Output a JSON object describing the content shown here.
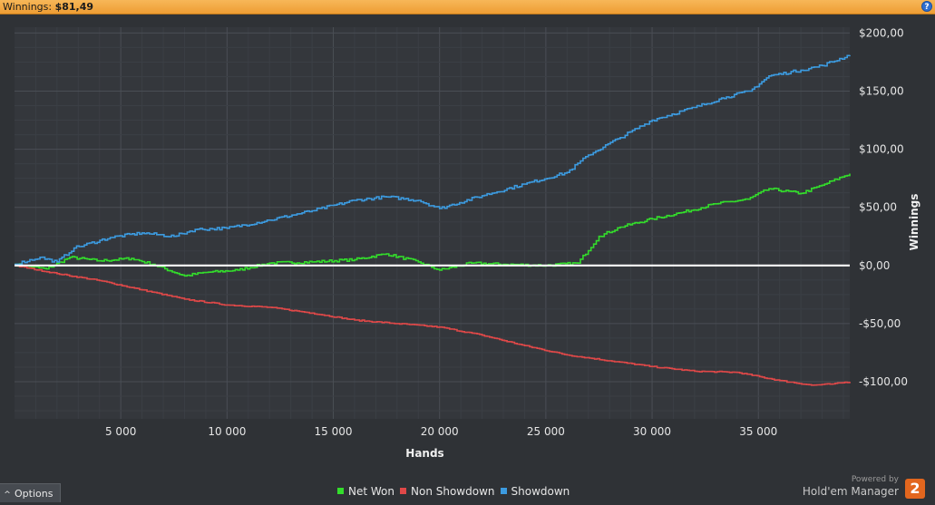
{
  "header": {
    "winnings_label": "Winnings:",
    "winnings_value": "$81,49",
    "help_glyph": "?"
  },
  "footer": {
    "options_label": "Options",
    "options_icon": "caret-up-icon",
    "powered_by": "Powered by",
    "brand": "Hold'em Manager",
    "brand_logo_text": "2"
  },
  "chart_data": {
    "type": "line",
    "xlabel": "Hands",
    "ylabel": "Winnings",
    "xlim": [
      0,
      39300
    ],
    "ylim": [
      -132,
      205
    ],
    "x_ticks": [
      5000,
      10000,
      15000,
      20000,
      25000,
      30000,
      35000
    ],
    "x_tick_labels": [
      "5 000",
      "10 000",
      "15 000",
      "20 000",
      "25 000",
      "30 000",
      "35 000"
    ],
    "y_ticks": [
      200,
      150,
      100,
      50,
      0,
      -50,
      -100
    ],
    "y_tick_labels": [
      "$200,00",
      "$150,00",
      "$100,00",
      "$50,00",
      "$0,00",
      "-$50,00",
      "-$100,00"
    ],
    "grid": true,
    "legend_position": "bottom",
    "colors": {
      "zero_line": "#ffffff",
      "grid_major": "#4a4e55",
      "grid_minor": "#3b3f45",
      "plot_bg": "#34373c"
    },
    "series": [
      {
        "name": "Net Won",
        "color": "#33dd2b",
        "x": [
          0,
          1500,
          2600,
          4000,
          5500,
          6500,
          8000,
          9000,
          10500,
          12000,
          14000,
          16000,
          17500,
          19000,
          20000,
          21500,
          23000,
          25000,
          26500,
          27500,
          28500,
          30000,
          31500,
          33000,
          34500,
          35500,
          37000,
          38000,
          39300
        ],
        "values": [
          1,
          -3,
          7,
          4,
          6,
          1,
          -9,
          -6,
          -4,
          2,
          3,
          5,
          10,
          3,
          -4,
          2,
          1,
          0,
          2,
          25,
          33,
          40,
          46,
          53,
          57,
          66,
          62,
          69,
          79
        ]
      },
      {
        "name": "Non Showdown",
        "color": "#e04848",
        "x": [
          0,
          2000,
          4000,
          6000,
          8000,
          10000,
          12000,
          14000,
          16000,
          18000,
          20000,
          22000,
          24000,
          26000,
          28000,
          30000,
          32000,
          34000,
          36000,
          37500,
          38500,
          39300
        ],
        "values": [
          0,
          -7,
          -13,
          -21,
          -29,
          -34,
          -36,
          -41,
          -47,
          -50,
          -53,
          -60,
          -69,
          -77,
          -82,
          -87,
          -91,
          -92,
          -99,
          -103,
          -102,
          -100
        ]
      },
      {
        "name": "Showdown",
        "color": "#3c9be0",
        "x": [
          0,
          1200,
          2000,
          2800,
          4500,
          6000,
          7500,
          8500,
          10000,
          12000,
          14000,
          16000,
          17500,
          19000,
          20000,
          22000,
          24000,
          26000,
          27000,
          28500,
          30000,
          32000,
          33500,
          34600,
          35500,
          37000,
          38000,
          39300
        ],
        "values": [
          1,
          7,
          3,
          15,
          24,
          28,
          25,
          31,
          32,
          39,
          47,
          56,
          59,
          56,
          49,
          60,
          70,
          80,
          95,
          110,
          125,
          136,
          145,
          150,
          163,
          168,
          172,
          181
        ]
      }
    ]
  }
}
